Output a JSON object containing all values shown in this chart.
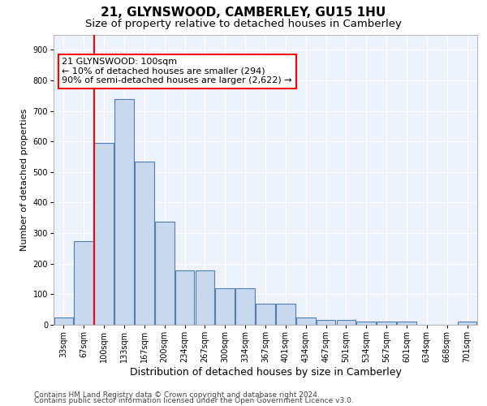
{
  "title": "21, GLYNSWOOD, CAMBERLEY, GU15 1HU",
  "subtitle": "Size of property relative to detached houses in Camberley",
  "xlabel": "Distribution of detached houses by size in Camberley",
  "ylabel": "Number of detached properties",
  "footer_line1": "Contains HM Land Registry data © Crown copyright and database right 2024.",
  "footer_line2": "Contains public sector information licensed under the Open Government Licence v3.0.",
  "bar_labels": [
    "33sqm",
    "67sqm",
    "100sqm",
    "133sqm",
    "167sqm",
    "200sqm",
    "234sqm",
    "267sqm",
    "300sqm",
    "334sqm",
    "367sqm",
    "401sqm",
    "434sqm",
    "467sqm",
    "501sqm",
    "534sqm",
    "567sqm",
    "601sqm",
    "634sqm",
    "668sqm",
    "701sqm"
  ],
  "bar_values": [
    25,
    275,
    595,
    740,
    535,
    338,
    178,
    178,
    120,
    120,
    70,
    70,
    25,
    15,
    15,
    10,
    10,
    10,
    0,
    0,
    10
  ],
  "bar_color": "#c8d8ee",
  "bar_edge_color": "#5080b0",
  "bar_edge_width": 0.8,
  "vline_index": 2,
  "vline_color": "red",
  "vline_linewidth": 1.5,
  "annotation_text": "21 GLYNSWOOD: 100sqm\n← 10% of detached houses are smaller (294)\n90% of semi-detached houses are larger (2,622) →",
  "annotation_box_color": "white",
  "annotation_box_edge_color": "red",
  "ylim": [
    0,
    950
  ],
  "yticks": [
    0,
    100,
    200,
    300,
    400,
    500,
    600,
    700,
    800,
    900
  ],
  "bg_color": "#eef2fb",
  "grid_color": "white",
  "title_fontsize": 11,
  "subtitle_fontsize": 9.5,
  "xlabel_fontsize": 9,
  "ylabel_fontsize": 8,
  "tick_fontsize": 7,
  "footer_fontsize": 6.5,
  "annotation_fontsize": 8
}
